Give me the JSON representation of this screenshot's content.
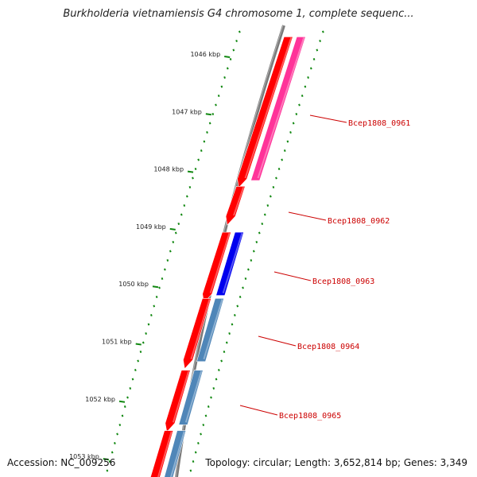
{
  "title": "Burkholderia vietnamiensis G4 chromosome 1, complete sequenc...",
  "footer": {
    "accession": "Accession: NC_009256",
    "topology": "Topology: circular; Length: 3,652,814 bp; Genes: 3,349"
  },
  "kbp_labels": [
    "1046 kbp",
    "1047 kbp",
    "1048 kbp",
    "1049 kbp",
    "1050 kbp",
    "1051 kbp",
    "1052 kbp",
    "1053 kbp"
  ],
  "gene_labels": [
    "Bcep1808_0961",
    "Bcep1808_0962",
    "Bcep1808_0963",
    "Bcep1808_0964",
    "Bcep1808_0965"
  ],
  "colors": {
    "backbone": "#7a7a7a",
    "forward_gene": "#ff0000",
    "track_pink": "#ff3399",
    "track_blue": "#0000ee",
    "track_steelblue": "#4f86b8",
    "tick_green": "#118811",
    "label_red": "#cc0000"
  },
  "tracks": {
    "forward": [
      {
        "start_kbp": 1045.7,
        "end_kbp": 1048.2
      },
      {
        "start_kbp": 1048.3,
        "end_kbp": 1048.85
      },
      {
        "start_kbp": 1049.1,
        "end_kbp": 1050.2
      },
      {
        "start_kbp": 1050.25,
        "end_kbp": 1051.35
      },
      {
        "start_kbp": 1051.5,
        "end_kbp": 1052.45
      },
      {
        "start_kbp": 1052.55,
        "end_kbp": 1053.5
      }
    ],
    "secondary": [
      {
        "start_kbp": 1045.7,
        "end_kbp": 1048.2,
        "color": "#ff3399"
      },
      {
        "start_kbp": 1049.1,
        "end_kbp": 1050.2,
        "color": "#0000ee"
      },
      {
        "start_kbp": 1050.25,
        "end_kbp": 1051.35,
        "color": "#4f86b8"
      },
      {
        "start_kbp": 1051.5,
        "end_kbp": 1052.45,
        "color": "#4f86b8"
      },
      {
        "start_kbp": 1052.55,
        "end_kbp": 1053.5,
        "color": "#4f86b8"
      }
    ]
  }
}
